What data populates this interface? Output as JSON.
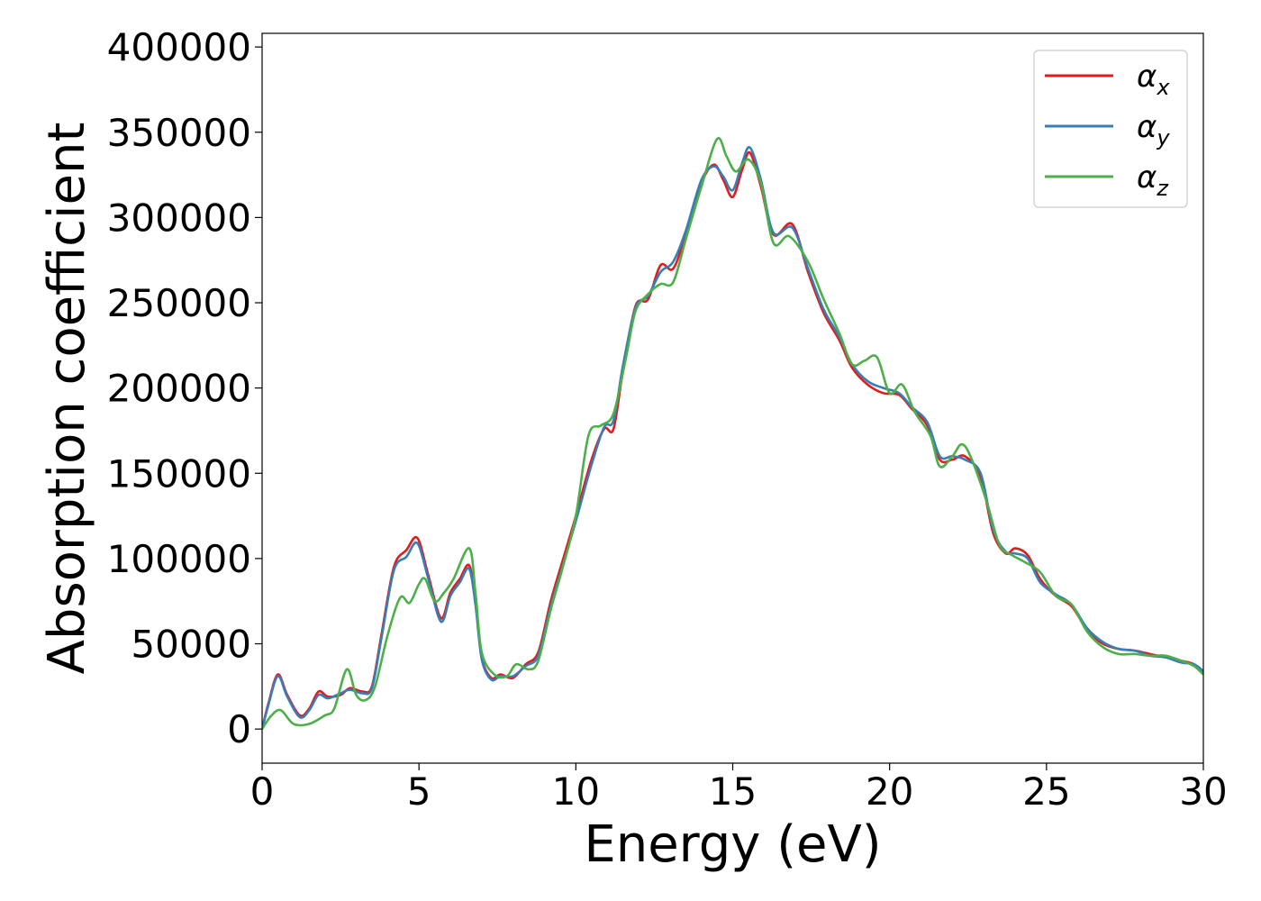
{
  "chart_data": {
    "type": "line",
    "title": "",
    "xlabel": "Energy (eV)",
    "ylabel": "Absorption coefficient",
    "xlim": [
      0,
      30
    ],
    "ylim": [
      -20000,
      408000
    ],
    "xticks": [
      0,
      5,
      10,
      15,
      20,
      25,
      30
    ],
    "xtick_labels": [
      "0",
      "5",
      "10",
      "15",
      "20",
      "25",
      "30"
    ],
    "yticks": [
      0,
      50000,
      100000,
      150000,
      200000,
      250000,
      300000,
      350000,
      400000
    ],
    "ytick_labels": [
      "0",
      "50000",
      "100000",
      "150000",
      "200000",
      "250000",
      "300000",
      "350000",
      "400000"
    ],
    "grid": false,
    "legend_position": "top-right",
    "series": [
      {
        "name": "αx",
        "symbol": "α",
        "subscript": "x",
        "color": "#e41a1c",
        "points": [
          [
            0,
            0
          ],
          [
            0.2,
            15000
          ],
          [
            0.5,
            32000
          ],
          [
            0.8,
            20000
          ],
          [
            1.2,
            8000
          ],
          [
            1.5,
            12000
          ],
          [
            1.8,
            22000
          ],
          [
            2.1,
            19000
          ],
          [
            2.5,
            20000
          ],
          [
            2.8,
            24000
          ],
          [
            3.2,
            22000
          ],
          [
            3.5,
            25000
          ],
          [
            3.8,
            55000
          ],
          [
            4.2,
            95000
          ],
          [
            4.6,
            105000
          ],
          [
            4.95,
            112000
          ],
          [
            5.3,
            90000
          ],
          [
            5.7,
            65000
          ],
          [
            6.0,
            80000
          ],
          [
            6.3,
            88000
          ],
          [
            6.6,
            96000
          ],
          [
            6.8,
            75000
          ],
          [
            7.0,
            42000
          ],
          [
            7.3,
            30000
          ],
          [
            7.6,
            32000
          ],
          [
            8.0,
            30000
          ],
          [
            8.4,
            38000
          ],
          [
            8.8,
            45000
          ],
          [
            9.2,
            75000
          ],
          [
            9.6,
            100000
          ],
          [
            10.0,
            125000
          ],
          [
            10.5,
            158000
          ],
          [
            10.9,
            176000
          ],
          [
            11.2,
            176000
          ],
          [
            11.5,
            210000
          ],
          [
            11.9,
            248000
          ],
          [
            12.3,
            252000
          ],
          [
            12.7,
            272000
          ],
          [
            13.1,
            270000
          ],
          [
            13.5,
            290000
          ],
          [
            14.0,
            320000
          ],
          [
            14.4,
            331000
          ],
          [
            14.7,
            322000
          ],
          [
            15.0,
            312000
          ],
          [
            15.3,
            328000
          ],
          [
            15.55,
            338000
          ],
          [
            15.9,
            318000
          ],
          [
            16.3,
            290000
          ],
          [
            16.9,
            296000
          ],
          [
            17.4,
            268000
          ],
          [
            17.9,
            244000
          ],
          [
            18.4,
            228000
          ],
          [
            18.8,
            212000
          ],
          [
            19.3,
            202000
          ],
          [
            19.8,
            197000
          ],
          [
            20.3,
            196000
          ],
          [
            20.7,
            188000
          ],
          [
            21.2,
            178000
          ],
          [
            21.6,
            158000
          ],
          [
            22.0,
            158000
          ],
          [
            22.4,
            160000
          ],
          [
            22.9,
            148000
          ],
          [
            23.3,
            115000
          ],
          [
            23.7,
            103000
          ],
          [
            24.0,
            106000
          ],
          [
            24.4,
            102000
          ],
          [
            24.8,
            88000
          ],
          [
            25.3,
            78000
          ],
          [
            25.8,
            72000
          ],
          [
            26.3,
            58000
          ],
          [
            26.8,
            50000
          ],
          [
            27.3,
            47000
          ],
          [
            27.8,
            46000
          ],
          [
            28.3,
            44000
          ],
          [
            28.8,
            42000
          ],
          [
            29.3,
            40000
          ],
          [
            29.7,
            38000
          ],
          [
            30.0,
            33000
          ]
        ]
      },
      {
        "name": "αy",
        "symbol": "α",
        "subscript": "y",
        "color": "#377eb8",
        "points": [
          [
            0,
            0
          ],
          [
            0.2,
            14000
          ],
          [
            0.5,
            31000
          ],
          [
            0.8,
            19000
          ],
          [
            1.2,
            7000
          ],
          [
            1.5,
            11000
          ],
          [
            1.8,
            20000
          ],
          [
            2.1,
            18000
          ],
          [
            2.5,
            21000
          ],
          [
            2.8,
            23000
          ],
          [
            3.2,
            21000
          ],
          [
            3.5,
            24000
          ],
          [
            3.8,
            53000
          ],
          [
            4.2,
            93000
          ],
          [
            4.6,
            101000
          ],
          [
            4.95,
            109000
          ],
          [
            5.3,
            88000
          ],
          [
            5.7,
            63000
          ],
          [
            6.0,
            78000
          ],
          [
            6.3,
            86000
          ],
          [
            6.6,
            94000
          ],
          [
            6.8,
            73000
          ],
          [
            7.0,
            41000
          ],
          [
            7.3,
            29000
          ],
          [
            7.6,
            31000
          ],
          [
            8.0,
            31000
          ],
          [
            8.4,
            37000
          ],
          [
            8.8,
            43000
          ],
          [
            9.2,
            72000
          ],
          [
            9.6,
            97000
          ],
          [
            10.0,
            122000
          ],
          [
            10.5,
            155000
          ],
          [
            10.9,
            177000
          ],
          [
            11.2,
            181000
          ],
          [
            11.5,
            213000
          ],
          [
            11.9,
            247000
          ],
          [
            12.3,
            254000
          ],
          [
            12.7,
            268000
          ],
          [
            13.1,
            274000
          ],
          [
            13.5,
            292000
          ],
          [
            14.0,
            322000
          ],
          [
            14.4,
            330000
          ],
          [
            14.7,
            324000
          ],
          [
            15.0,
            316000
          ],
          [
            15.3,
            332000
          ],
          [
            15.55,
            341000
          ],
          [
            15.9,
            322000
          ],
          [
            16.3,
            291000
          ],
          [
            16.9,
            294000
          ],
          [
            17.4,
            270000
          ],
          [
            17.9,
            246000
          ],
          [
            18.4,
            230000
          ],
          [
            18.8,
            214000
          ],
          [
            19.3,
            204000
          ],
          [
            19.8,
            200000
          ],
          [
            20.3,
            197000
          ],
          [
            20.7,
            189000
          ],
          [
            21.2,
            180000
          ],
          [
            21.6,
            160000
          ],
          [
            22.0,
            160000
          ],
          [
            22.4,
            158000
          ],
          [
            22.9,
            150000
          ],
          [
            23.3,
            117000
          ],
          [
            23.7,
            104000
          ],
          [
            24.0,
            103000
          ],
          [
            24.4,
            100000
          ],
          [
            24.8,
            86000
          ],
          [
            25.3,
            79000
          ],
          [
            25.8,
            73000
          ],
          [
            26.3,
            59000
          ],
          [
            26.8,
            51000
          ],
          [
            27.3,
            47000
          ],
          [
            27.8,
            46000
          ],
          [
            28.3,
            43000
          ],
          [
            28.8,
            42000
          ],
          [
            29.3,
            39000
          ],
          [
            29.7,
            38000
          ],
          [
            30.0,
            34000
          ]
        ]
      },
      {
        "name": "αz",
        "symbol": "α",
        "subscript": "z",
        "color": "#4daf4a",
        "points": [
          [
            0,
            0
          ],
          [
            0.3,
            8000
          ],
          [
            0.6,
            11000
          ],
          [
            1.0,
            3000
          ],
          [
            1.5,
            3000
          ],
          [
            2.0,
            8000
          ],
          [
            2.3,
            12000
          ],
          [
            2.7,
            35000
          ],
          [
            3.0,
            20000
          ],
          [
            3.3,
            17000
          ],
          [
            3.6,
            25000
          ],
          [
            4.0,
            55000
          ],
          [
            4.4,
            77000
          ],
          [
            4.7,
            74000
          ],
          [
            5.0,
            85000
          ],
          [
            5.2,
            88000
          ],
          [
            5.5,
            75000
          ],
          [
            5.8,
            80000
          ],
          [
            6.1,
            88000
          ],
          [
            6.6,
            106000
          ],
          [
            6.8,
            80000
          ],
          [
            7.0,
            45000
          ],
          [
            7.4,
            32000
          ],
          [
            7.8,
            31000
          ],
          [
            8.1,
            38000
          ],
          [
            8.5,
            35000
          ],
          [
            8.8,
            40000
          ],
          [
            9.2,
            70000
          ],
          [
            9.6,
            96000
          ],
          [
            10.0,
            125000
          ],
          [
            10.4,
            172000
          ],
          [
            10.8,
            178000
          ],
          [
            11.2,
            185000
          ],
          [
            11.6,
            218000
          ],
          [
            11.9,
            245000
          ],
          [
            12.3,
            255000
          ],
          [
            12.7,
            261000
          ],
          [
            13.1,
            262000
          ],
          [
            13.5,
            287000
          ],
          [
            14.0,
            318000
          ],
          [
            14.5,
            346000
          ],
          [
            14.8,
            336000
          ],
          [
            15.1,
            327000
          ],
          [
            15.5,
            334000
          ],
          [
            15.9,
            320000
          ],
          [
            16.3,
            285000
          ],
          [
            16.8,
            289000
          ],
          [
            17.4,
            274000
          ],
          [
            17.9,
            252000
          ],
          [
            18.4,
            232000
          ],
          [
            18.8,
            214000
          ],
          [
            19.2,
            216000
          ],
          [
            19.6,
            218000
          ],
          [
            20.0,
            197000
          ],
          [
            20.4,
            202000
          ],
          [
            20.8,
            186000
          ],
          [
            21.3,
            172000
          ],
          [
            21.6,
            154000
          ],
          [
            22.0,
            160000
          ],
          [
            22.3,
            167000
          ],
          [
            22.6,
            159000
          ],
          [
            23.1,
            133000
          ],
          [
            23.5,
            108000
          ],
          [
            23.9,
            102000
          ],
          [
            24.3,
            98000
          ],
          [
            24.8,
            92000
          ],
          [
            25.3,
            78000
          ],
          [
            25.8,
            73000
          ],
          [
            26.3,
            57000
          ],
          [
            26.8,
            48000
          ],
          [
            27.3,
            44000
          ],
          [
            27.8,
            44000
          ],
          [
            28.3,
            43000
          ],
          [
            28.8,
            43000
          ],
          [
            29.3,
            40000
          ],
          [
            29.7,
            37000
          ],
          [
            30.0,
            32000
          ]
        ]
      }
    ]
  }
}
